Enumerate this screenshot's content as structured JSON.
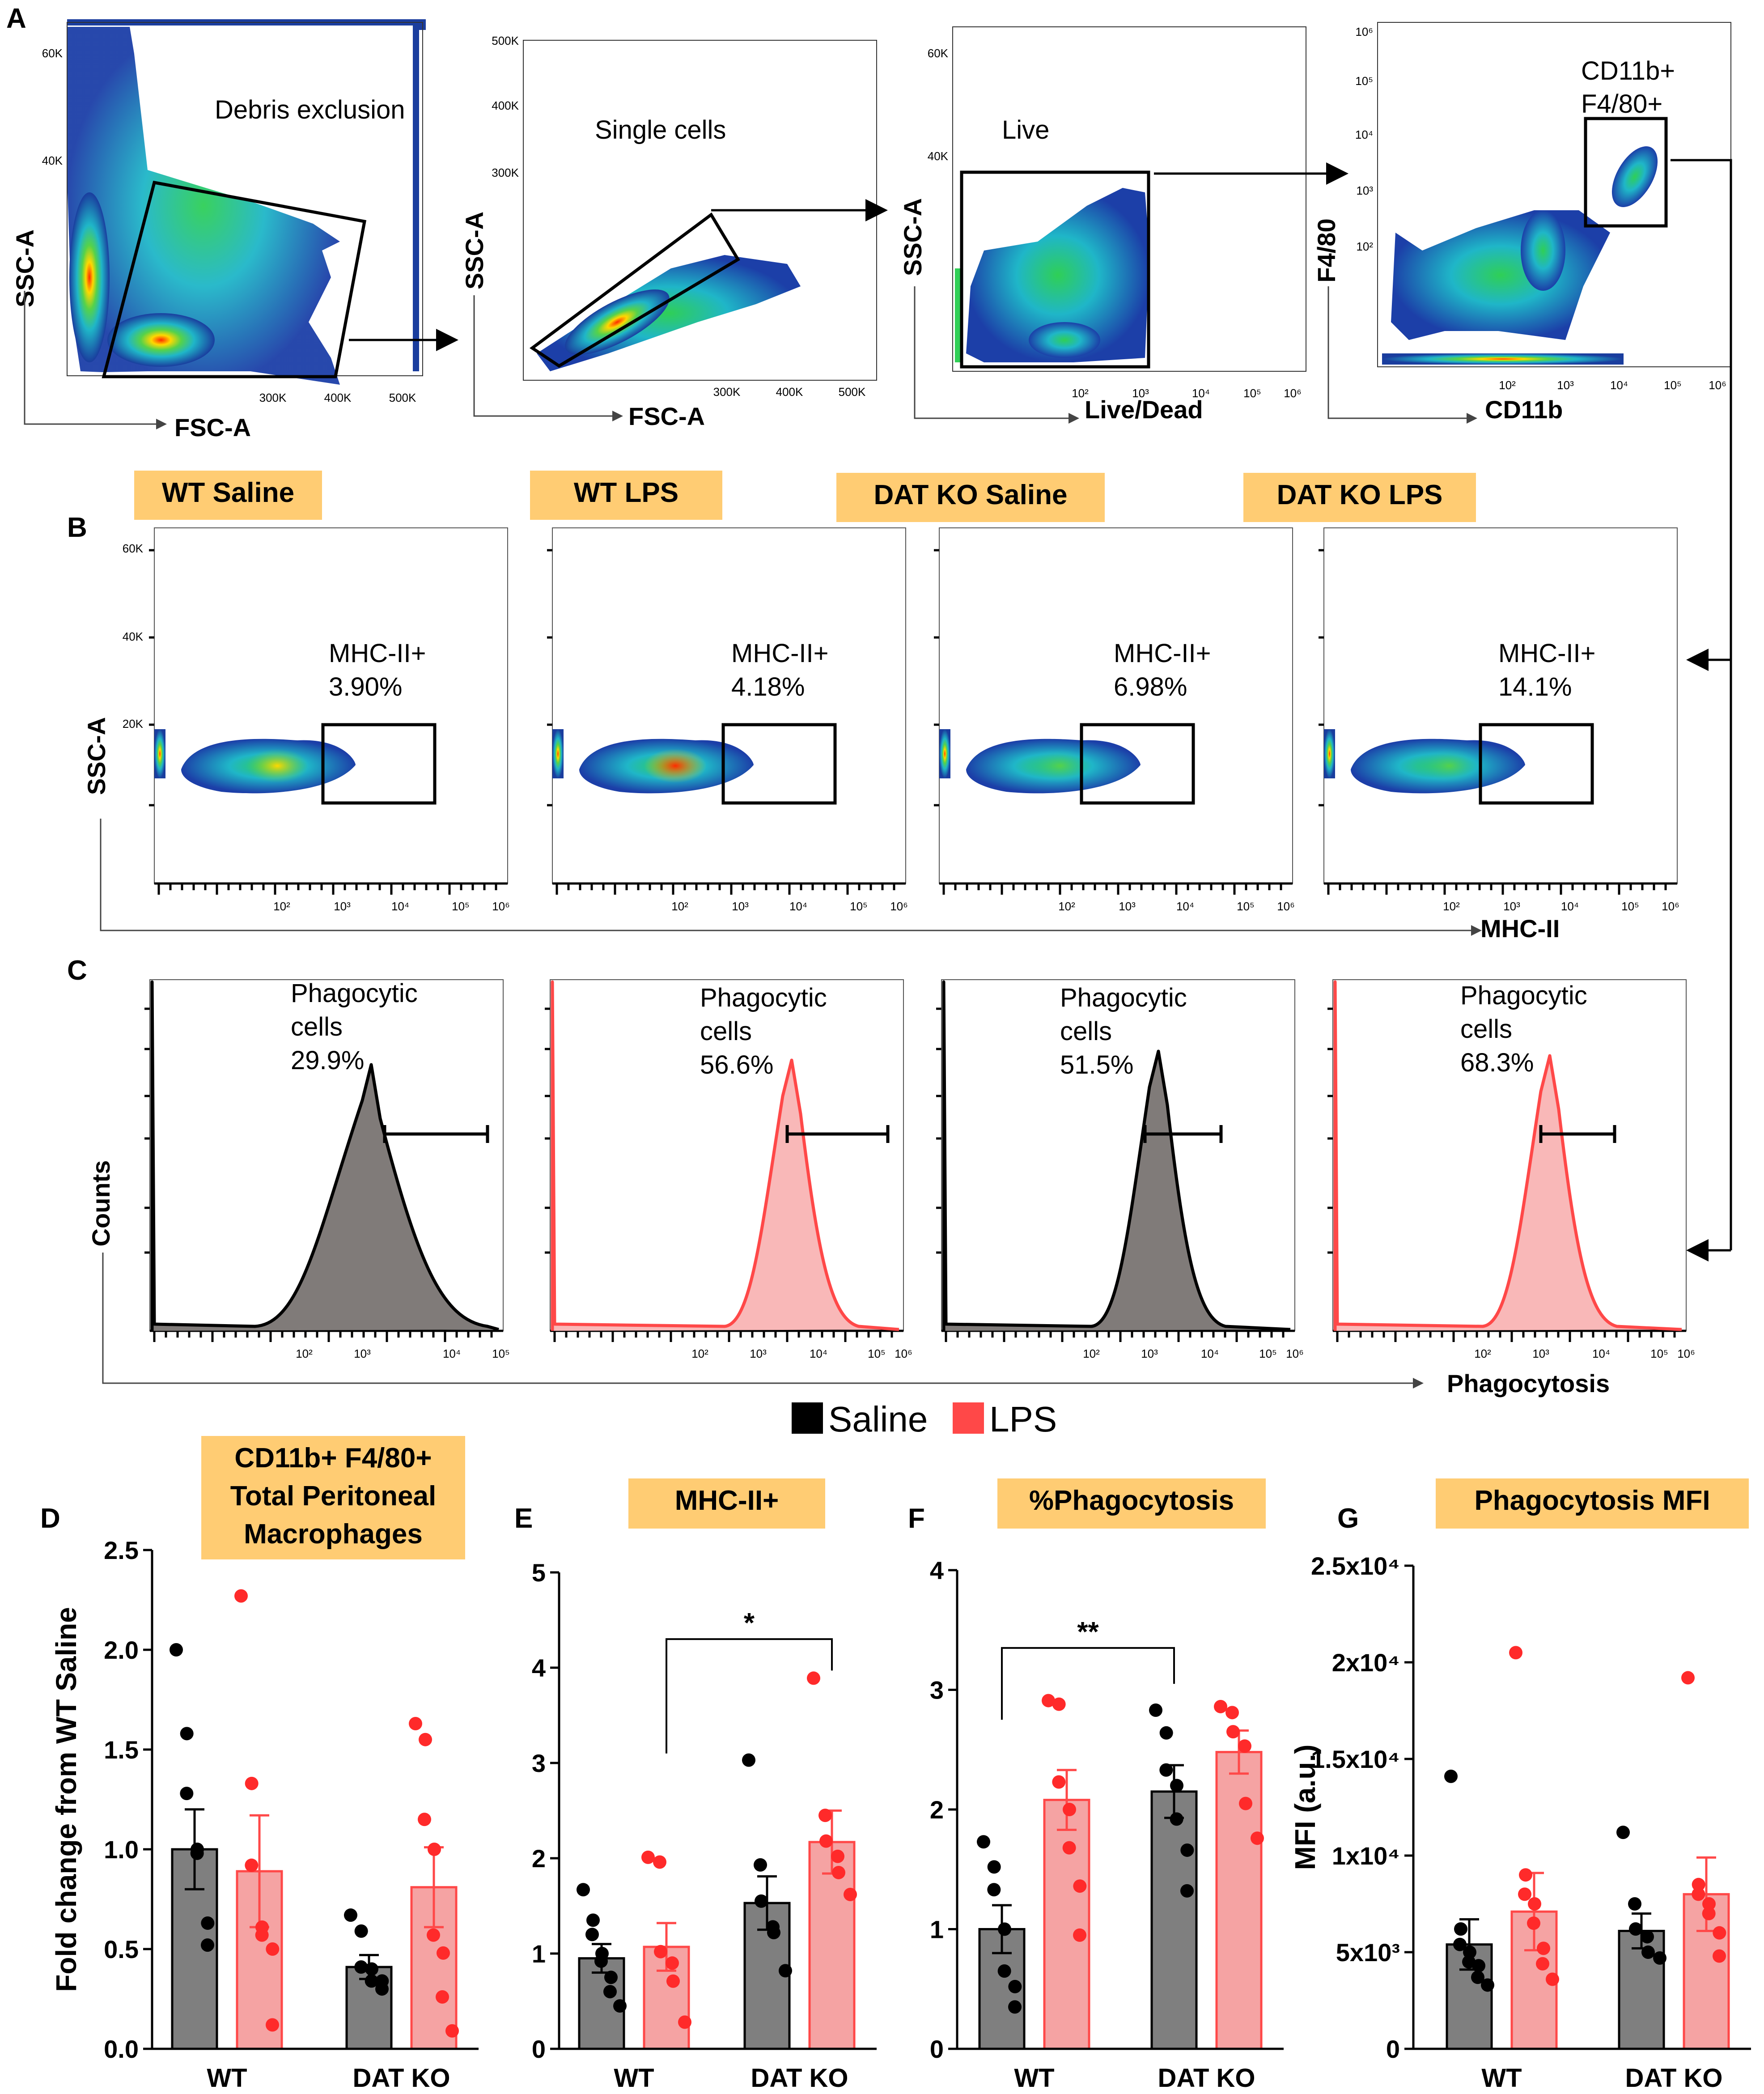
{
  "panels": {
    "A": "A",
    "B": "B",
    "C": "C",
    "D": "D",
    "E": "E",
    "F": "F",
    "G": "G"
  },
  "colors": {
    "saline": "#7f7f7f",
    "lps": "#f5a3a3",
    "saline_dot": "#000000",
    "lps_dot": "#ff2a2a",
    "label_bg": "#ffcc73"
  },
  "gating": {
    "p1": {
      "title": "Debris exclusion",
      "xlabel": "FSC-A",
      "ylabel": "SSC-A",
      "yticks": [
        "60K",
        "40K"
      ],
      "xticks": [
        "300K",
        "400K",
        "500K"
      ]
    },
    "p2": {
      "title": "Single cells",
      "xlabel": "FSC-A",
      "ylabel": "SSC-A",
      "yticks": [
        "500K",
        "400K",
        "300K"
      ],
      "xticks": [
        "300K",
        "400K",
        "500K"
      ]
    },
    "p3": {
      "title": "Live",
      "xlabel": "Live/Dead",
      "ylabel": "SSC-A",
      "yticks": [
        "60K",
        "40K"
      ],
      "xticks": [
        "10²",
        "10³",
        "10⁴",
        "10⁵",
        "10⁶"
      ]
    },
    "p4": {
      "title_line1": "CD11b+",
      "title_line2": "F4/80+",
      "xlabel": "CD11b",
      "ylabel": "F4/80",
      "yticks": [
        "10⁶",
        "10⁵",
        "10⁴",
        "10³",
        "10²"
      ],
      "xticks": [
        "10²",
        "10³",
        "10⁴",
        "10⁵",
        "10⁶"
      ]
    }
  },
  "groups": [
    "WT Saline",
    "WT LPS",
    "DAT KO Saline",
    "DAT KO LPS"
  ],
  "mhc": {
    "gate_label": "MHC-II+",
    "values": [
      "3.90%",
      "4.18%",
      "6.98%",
      "14.1%"
    ],
    "ylabel": "SSC-A",
    "xlabel": "MHC-II",
    "yticks": [
      "60K",
      "40K",
      "20K"
    ],
    "xticks": [
      "10²",
      "10³",
      "10⁴",
      "10⁵",
      "10⁶"
    ]
  },
  "phago": {
    "label_line1": "Phagocytic",
    "label_line2": "cells",
    "values": [
      "29.9%",
      "56.6%",
      "51.5%",
      "68.3%"
    ],
    "ylabel": "Counts",
    "xlabel": "Phagocytosis",
    "xticks": [
      "10²",
      "10³",
      "10⁴",
      "10⁵"
    ],
    "xticks6": [
      "10²",
      "10³",
      "10⁴",
      "10⁵",
      "10⁶"
    ]
  },
  "legend": {
    "saline": "Saline",
    "lps": "LPS"
  },
  "chart_data": [
    {
      "type": "bar",
      "panel": "D",
      "title": "CD11b+ F4/80+ Total Peritoneal Macrophages",
      "title_lines": [
        "CD11b+ F4/80+",
        "Total Peritoneal",
        "Macrophages"
      ],
      "ylabel": "Fold change from WT Saline",
      "categories": [
        "WT",
        "DAT KO"
      ],
      "ylim": [
        0,
        2.5
      ],
      "yticks": [
        "0.0",
        "0.5",
        "1.0",
        "1.5",
        "2.0",
        "2.5"
      ],
      "ytick_values": [
        0,
        0.5,
        1.0,
        1.5,
        2.0,
        2.5
      ],
      "series": [
        {
          "name": "Saline",
          "values": [
            1.0,
            0.41
          ],
          "sem": [
            0.2,
            0.06
          ],
          "points": [
            [
              2.0,
              1.58,
              1.28,
              1.0,
              0.98,
              0.63,
              0.52
            ],
            [
              0.67,
              0.59,
              0.41,
              0.4,
              0.34,
              0.34,
              0.3
            ]
          ]
        },
        {
          "name": "LPS",
          "values": [
            0.89,
            0.81
          ],
          "sem": [
            0.28,
            0.2
          ],
          "points": [
            [
              2.27,
              1.33,
              0.92,
              0.61,
              0.57,
              0.5,
              0.12
            ],
            [
              1.63,
              1.55,
              1.15,
              1.0,
              0.57,
              0.48,
              0.26,
              0.09
            ]
          ]
        }
      ],
      "significance": []
    },
    {
      "type": "bar",
      "panel": "E",
      "title": "MHC-II+",
      "title_lines": [
        "MHC-II+"
      ],
      "ylabel": "",
      "categories": [
        "WT",
        "DAT KO"
      ],
      "ylim": [
        0,
        5
      ],
      "yticks": [
        "0",
        "1",
        "2",
        "3",
        "4",
        "5"
      ],
      "ytick_values": [
        0,
        1,
        2,
        3,
        4,
        5
      ],
      "series": [
        {
          "name": "Saline",
          "values": [
            0.95,
            1.53
          ],
          "sem": [
            0.15,
            0.28
          ],
          "points": [
            [
              1.67,
              1.35,
              1.2,
              1.0,
              0.92,
              0.75,
              0.6,
              0.45
            ],
            [
              3.03,
              1.93,
              1.55,
              1.28,
              1.22,
              0.82
            ]
          ]
        },
        {
          "name": "LPS",
          "values": [
            1.07,
            2.17
          ],
          "sem": [
            0.25,
            0.33
          ],
          "points": [
            [
              2.01,
              1.96,
              1.02,
              0.9,
              0.71,
              0.28
            ],
            [
              3.89,
              2.45,
              2.18,
              2.02,
              1.85,
              1.62
            ]
          ]
        }
      ],
      "significance": [
        {
          "from": "WT LPS",
          "to": "DAT KO LPS",
          "label": "*"
        }
      ]
    },
    {
      "type": "bar",
      "panel": "F",
      "title": "%Phagocytosis",
      "title_lines": [
        "%Phagocytosis"
      ],
      "ylabel": "",
      "categories": [
        "WT",
        "DAT KO"
      ],
      "ylim": [
        0,
        4
      ],
      "yticks": [
        "0",
        "1",
        "2",
        "3",
        "4"
      ],
      "ytick_values": [
        0,
        1,
        2,
        3,
        4
      ],
      "series": [
        {
          "name": "Saline",
          "values": [
            1.0,
            2.15
          ],
          "sem": [
            0.2,
            0.22
          ],
          "points": [
            [
              1.73,
              1.52,
              1.33,
              1.0,
              0.65,
              0.52,
              0.35
            ],
            [
              2.83,
              2.64,
              2.33,
              2.2,
              1.92,
              1.66,
              1.32
            ]
          ]
        },
        {
          "name": "LPS",
          "values": [
            2.08,
            2.48
          ],
          "sem": [
            0.25,
            0.18
          ],
          "points": [
            [
              2.91,
              2.88,
              2.23,
              2.0,
              1.68,
              1.36,
              0.95
            ],
            [
              2.86,
              2.81,
              2.65,
              2.53,
              2.05,
              1.76
            ]
          ]
        }
      ],
      "significance": [
        {
          "from": "WT Saline",
          "to": "DAT KO Saline",
          "label": "**"
        }
      ]
    },
    {
      "type": "bar",
      "panel": "G",
      "title": "Phagocytosis MFI",
      "title_lines": [
        "Phagocytosis MFI"
      ],
      "ylabel": "MFI (a.u.)",
      "categories": [
        "WT",
        "DAT KO"
      ],
      "ylim": [
        0,
        25000
      ],
      "yticks": [
        "0",
        "5x10³",
        "1x10⁴",
        "1.5x10⁴",
        "2x10⁴",
        "2.5x10⁴"
      ],
      "ytick_values": [
        0,
        5000,
        10000,
        15000,
        20000,
        25000
      ],
      "series": [
        {
          "name": "Saline",
          "values": [
            5400,
            6100
          ],
          "sem": [
            1300,
            900
          ],
          "points": [
            [
              14100,
              6200,
              5400,
              5000,
              4500,
              4300,
              3700,
              3300
            ],
            [
              11200,
              7500,
              6200,
              5800,
              5000,
              4700
            ]
          ]
        },
        {
          "name": "LPS",
          "values": [
            7100,
            8000
          ],
          "sem": [
            2000,
            1900
          ],
          "points": [
            [
              20500,
              9000,
              8000,
              7500,
              6500,
              5200,
              4400,
              3600
            ],
            [
              19200,
              8500,
              8000,
              7500,
              7000,
              6000,
              4800
            ]
          ]
        }
      ],
      "significance": []
    }
  ]
}
